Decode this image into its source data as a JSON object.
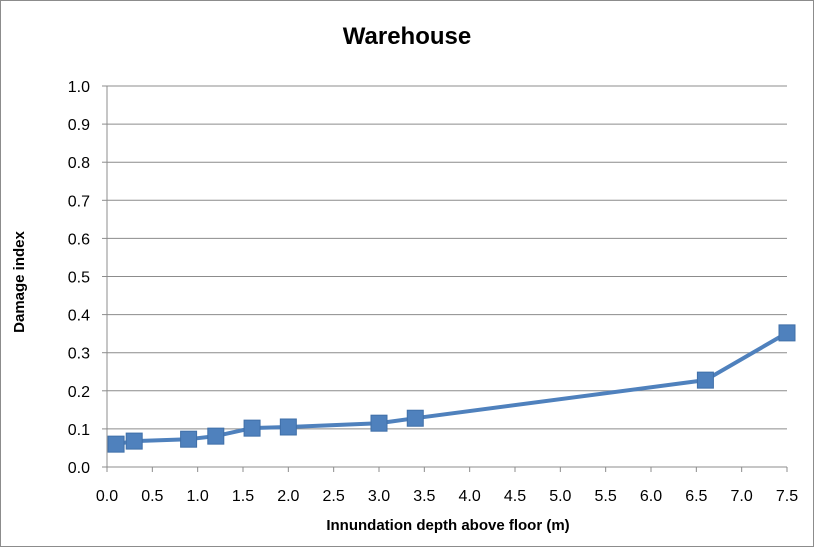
{
  "chart_data": {
    "type": "line",
    "title": "Warehouse",
    "xlabel": "Innundation depth above floor (m)",
    "ylabel": "Damage index",
    "xlim": [
      0.0,
      7.5
    ],
    "ylim": [
      0.0,
      1.0
    ],
    "xticks": [
      "0.0",
      "0.5",
      "1.0",
      "1.5",
      "2.0",
      "2.5",
      "3.0",
      "3.5",
      "4.0",
      "4.5",
      "5.0",
      "5.5",
      "6.0",
      "6.5",
      "7.0",
      "7.5"
    ],
    "yticks": [
      "0.0",
      "0.1",
      "0.2",
      "0.3",
      "0.4",
      "0.5",
      "0.6",
      "0.7",
      "0.8",
      "0.9",
      "1.0"
    ],
    "grid": "horizontal",
    "legend": "none",
    "series": [
      {
        "color": "#4f81bd",
        "marker": "square",
        "x": [
          0.1,
          0.3,
          0.9,
          1.2,
          1.6,
          2.0,
          3.0,
          3.4,
          6.6,
          7.5
        ],
        "y": [
          0.06,
          0.068,
          0.073,
          0.081,
          0.102,
          0.105,
          0.115,
          0.128,
          0.228,
          0.352
        ]
      }
    ]
  }
}
